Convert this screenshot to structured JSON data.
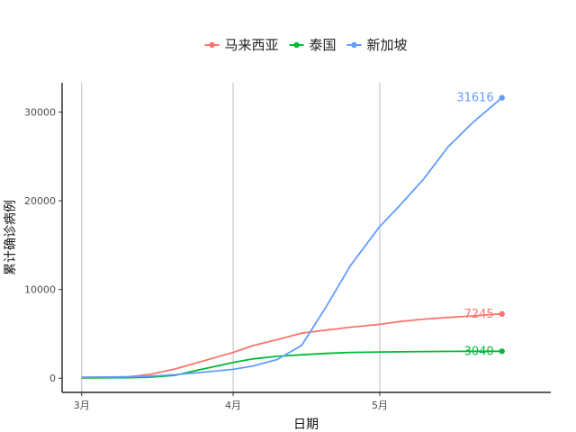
{
  "chart_data": {
    "type": "line",
    "title": "",
    "xlabel": "日期",
    "ylabel": "累计确诊病例",
    "x_ticks": [
      {
        "date": "2020-03-01",
        "label": "3月"
      },
      {
        "date": "2020-04-01",
        "label": "4月"
      },
      {
        "date": "2020-05-01",
        "label": "5月"
      }
    ],
    "y_ticks": [
      0,
      10000,
      20000,
      30000
    ],
    "xlim": [
      "2020-02-26",
      "2020-06-05"
    ],
    "ylim": [
      -1600,
      33300
    ],
    "grid": "vertical lines at month ticks",
    "legend_position": "top",
    "series": [
      {
        "name": "马来西亚",
        "color": "#F8766D",
        "end_label": "7245",
        "points": [
          [
            "2020-03-01",
            29
          ],
          [
            "2020-03-10",
            129
          ],
          [
            "2020-03-15",
            428
          ],
          [
            "2020-03-20",
            1030
          ],
          [
            "2020-03-25",
            1796
          ],
          [
            "2020-04-01",
            2908
          ],
          [
            "2020-04-05",
            3662
          ],
          [
            "2020-04-10",
            4346
          ],
          [
            "2020-04-15",
            5072
          ],
          [
            "2020-04-20",
            5425
          ],
          [
            "2020-04-25",
            5742
          ],
          [
            "2020-05-01",
            6071
          ],
          [
            "2020-05-05",
            6383
          ],
          [
            "2020-05-10",
            6656
          ],
          [
            "2020-05-15",
            6855
          ],
          [
            "2020-05-20",
            7009
          ],
          [
            "2020-05-24",
            7185
          ],
          [
            "2020-05-26",
            7245
          ]
        ]
      },
      {
        "name": "泰国",
        "color": "#00BA38",
        "end_label": "3040",
        "points": [
          [
            "2020-03-01",
            42
          ],
          [
            "2020-03-10",
            53
          ],
          [
            "2020-03-15",
            114
          ],
          [
            "2020-03-20",
            322
          ],
          [
            "2020-03-25",
            934
          ],
          [
            "2020-04-01",
            1771
          ],
          [
            "2020-04-05",
            2169
          ],
          [
            "2020-04-10",
            2473
          ],
          [
            "2020-04-15",
            2643
          ],
          [
            "2020-04-20",
            2792
          ],
          [
            "2020-04-25",
            2907
          ],
          [
            "2020-05-01",
            2960
          ],
          [
            "2020-05-10",
            3009
          ],
          [
            "2020-05-20",
            3034
          ],
          [
            "2020-05-26",
            3040
          ]
        ]
      },
      {
        "name": "新加坡",
        "color": "#619CFF",
        "end_label": "31616",
        "points": [
          [
            "2020-03-01",
            106
          ],
          [
            "2020-03-10",
            160
          ],
          [
            "2020-03-15",
            226
          ],
          [
            "2020-03-20",
            385
          ],
          [
            "2020-03-25",
            631
          ],
          [
            "2020-04-01",
            1000
          ],
          [
            "2020-04-05",
            1375
          ],
          [
            "2020-04-10",
            2108
          ],
          [
            "2020-04-15",
            3699
          ],
          [
            "2020-04-20",
            8014
          ],
          [
            "2020-04-25",
            12693
          ],
          [
            "2020-05-01",
            17101
          ],
          [
            "2020-05-05",
            19410
          ],
          [
            "2020-05-10",
            22460
          ],
          [
            "2020-05-15",
            26098
          ],
          [
            "2020-05-20",
            28794
          ],
          [
            "2020-05-26",
            31616
          ]
        ]
      }
    ]
  }
}
